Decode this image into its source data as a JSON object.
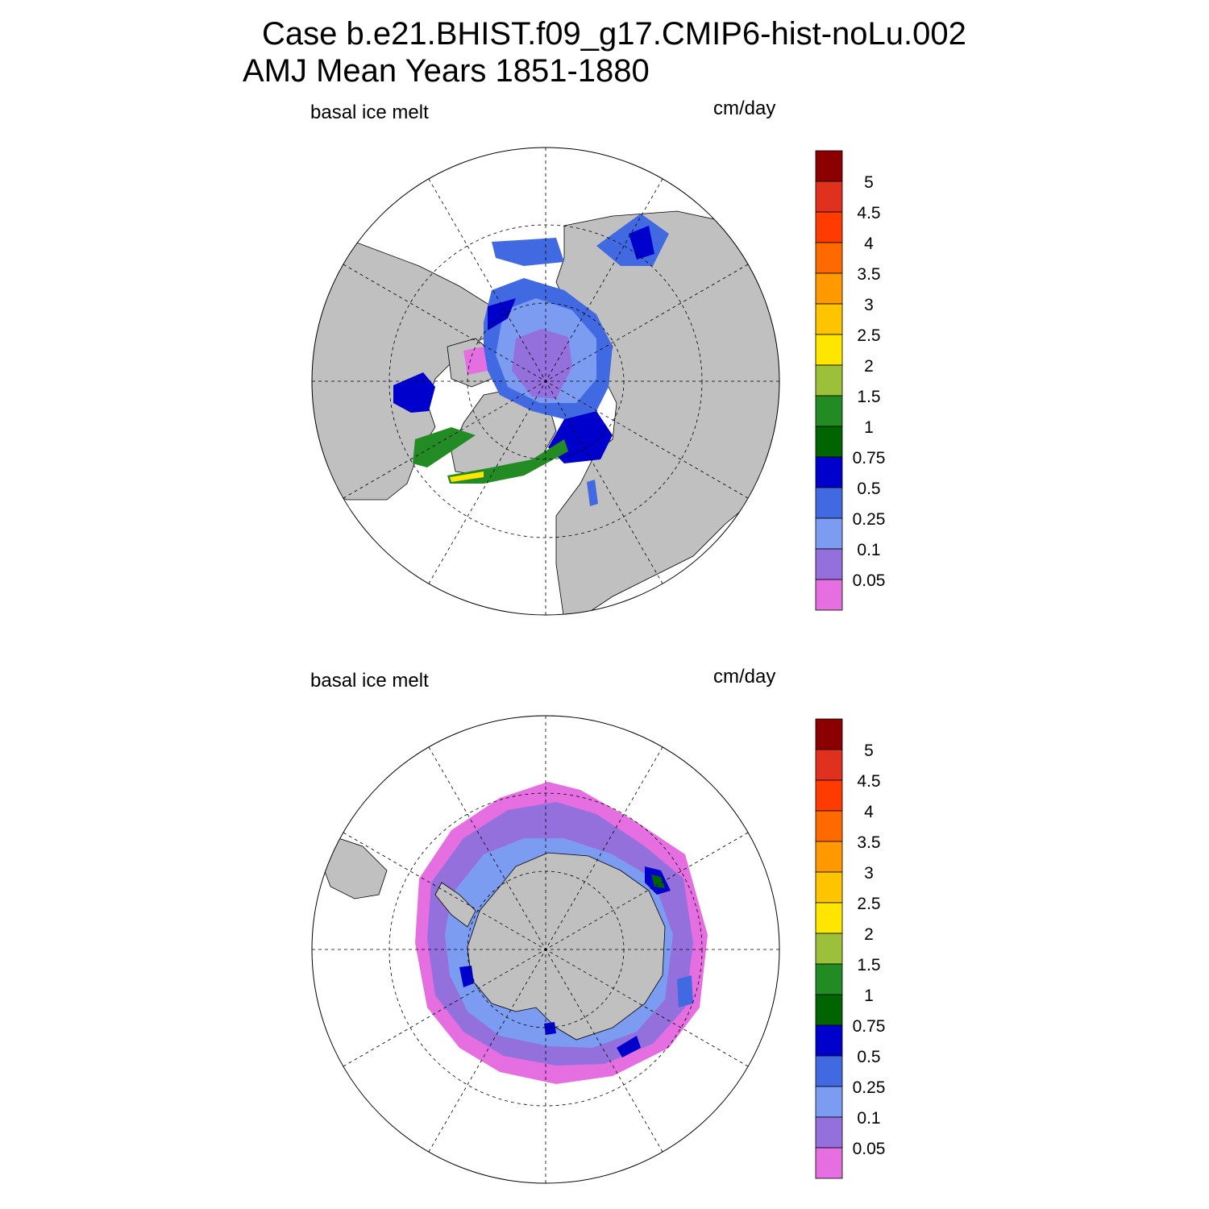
{
  "title_line1": "Case b.e21.BHIST.f09_g17.CMIP6-hist-noLu.002",
  "title_line2": "AMJ Mean   Years 1851-1880",
  "panels": [
    {
      "hemisphere": "north",
      "variable": "basal ice melt",
      "units": "cm/day"
    },
    {
      "hemisphere": "south",
      "variable": "basal ice melt",
      "units": "cm/day"
    }
  ],
  "colorbar": {
    "labels": [
      "5",
      "4.5",
      "4",
      "3.5",
      "3",
      "2.5",
      "2",
      "1.5",
      "1",
      "0.75",
      "0.5",
      "0.25",
      "0.1",
      "0.05"
    ],
    "colors_top_to_bottom": [
      "#8b0000",
      "#e0301e",
      "#ff3b00",
      "#ff6a00",
      "#ff9900",
      "#ffc400",
      "#ffe600",
      "#9dc03a",
      "#238b23",
      "#006400",
      "#0000cd",
      "#4169e1",
      "#7b9cf0",
      "#9370db",
      "#e56fe0"
    ]
  },
  "colors": {
    "land": "#c0c0c0",
    "ocean": "#ffffff"
  }
}
